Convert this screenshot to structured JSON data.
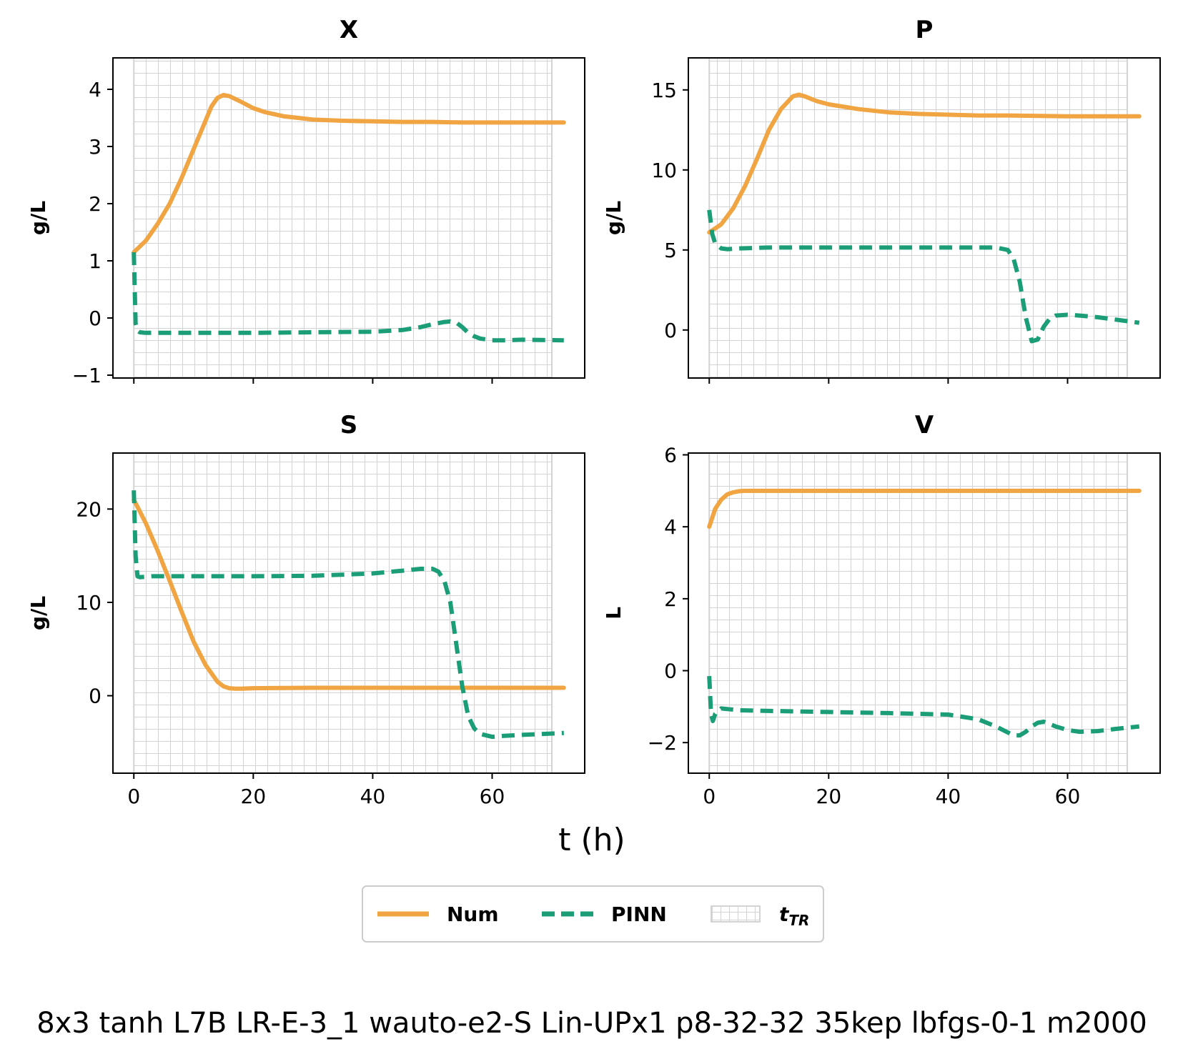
{
  "colors": {
    "num": "#F0A442",
    "pinn": "#1B9E77",
    "grid": "#D3D3D3"
  },
  "xlabel": "t (h)",
  "caption": "8x3 tanh L7B LR-E-3_1 wauto-e2-S Lin-UPx1 p8-32-32 35kep lbfgs-0-1 m2000",
  "legend": {
    "placement": "bottom-center",
    "entries": [
      {
        "label": "Num",
        "style": "solid"
      },
      {
        "label": "PINN",
        "style": "dashed"
      },
      {
        "label": "tTR",
        "style": "hatch"
      }
    ]
  },
  "tTR_range": [
    0,
    70
  ],
  "chart_data": [
    {
      "type": "line",
      "title": "X",
      "ylabel": "g/L",
      "xlim": [
        -3.5,
        75.5
      ],
      "ylim": [
        -1.05,
        4.55
      ],
      "xticks": [
        0,
        20,
        40,
        60
      ],
      "yticks": [
        -1,
        0,
        1,
        2,
        3,
        4
      ],
      "show_xticklabels": false,
      "series": [
        {
          "name": "Num",
          "x": [
            0,
            2,
            4,
            6,
            8,
            10,
            12,
            13,
            14,
            15,
            16,
            18,
            20,
            22,
            25,
            30,
            35,
            40,
            45,
            50,
            55,
            60,
            65,
            72
          ],
          "y": [
            1.15,
            1.35,
            1.65,
            2.0,
            2.45,
            2.95,
            3.45,
            3.7,
            3.85,
            3.9,
            3.88,
            3.78,
            3.67,
            3.6,
            3.53,
            3.47,
            3.45,
            3.44,
            3.43,
            3.43,
            3.42,
            3.42,
            3.42,
            3.42
          ]
        },
        {
          "name": "PINN",
          "x": [
            0,
            0.3,
            0.6,
            1,
            2,
            5,
            10,
            20,
            30,
            40,
            45,
            48,
            50,
            52,
            53,
            54,
            55,
            56,
            57,
            58,
            60,
            62,
            65,
            72
          ],
          "y": [
            1.15,
            -0.1,
            -0.22,
            -0.25,
            -0.26,
            -0.26,
            -0.26,
            -0.26,
            -0.25,
            -0.24,
            -0.21,
            -0.16,
            -0.11,
            -0.07,
            -0.06,
            -0.08,
            -0.16,
            -0.26,
            -0.32,
            -0.36,
            -0.39,
            -0.39,
            -0.38,
            -0.39
          ]
        }
      ]
    },
    {
      "type": "line",
      "title": "P",
      "ylabel": "g/L",
      "xlim": [
        -3.5,
        75.5
      ],
      "ylim": [
        -3.0,
        17.0
      ],
      "xticks": [
        0,
        20,
        40,
        60
      ],
      "yticks": [
        0,
        5,
        10,
        15
      ],
      "show_xticklabels": false,
      "series": [
        {
          "name": "Num",
          "x": [
            0,
            2,
            4,
            6,
            8,
            10,
            12,
            14,
            15,
            16,
            18,
            20,
            25,
            30,
            35,
            40,
            45,
            50,
            60,
            72
          ],
          "y": [
            6.1,
            6.6,
            7.6,
            9.0,
            10.7,
            12.5,
            13.8,
            14.6,
            14.7,
            14.6,
            14.3,
            14.1,
            13.8,
            13.6,
            13.5,
            13.45,
            13.4,
            13.4,
            13.35,
            13.35
          ]
        },
        {
          "name": "PINN",
          "x": [
            0,
            0.5,
            1,
            2,
            3,
            5,
            10,
            20,
            30,
            40,
            45,
            48,
            50,
            51,
            52,
            53,
            54,
            55,
            56,
            57,
            58,
            60,
            62,
            65,
            68,
            72
          ],
          "y": [
            7.5,
            6.0,
            5.4,
            5.1,
            5.05,
            5.1,
            5.15,
            5.15,
            5.15,
            5.15,
            5.15,
            5.15,
            5.0,
            4.4,
            3.0,
            0.8,
            -0.7,
            -0.6,
            0.2,
            0.7,
            0.9,
            0.95,
            0.9,
            0.8,
            0.65,
            0.45
          ]
        }
      ]
    },
    {
      "type": "line",
      "title": "S",
      "ylabel": "g/L",
      "xlim": [
        -3.5,
        75.5
      ],
      "ylim": [
        -8.3,
        26.0
      ],
      "xticks": [
        0,
        20,
        40,
        60
      ],
      "yticks": [
        0,
        10,
        20
      ],
      "show_xticklabels": true,
      "series": [
        {
          "name": "Num",
          "x": [
            0,
            2,
            4,
            6,
            8,
            10,
            12,
            14,
            15,
            16,
            17,
            18,
            20,
            30,
            40,
            50,
            60,
            72
          ],
          "y": [
            21.0,
            18.5,
            15.5,
            12.3,
            9.0,
            5.8,
            3.3,
            1.5,
            1.0,
            0.8,
            0.75,
            0.75,
            0.8,
            0.85,
            0.85,
            0.85,
            0.85,
            0.85
          ]
        },
        {
          "name": "PINN",
          "x": [
            0,
            0.3,
            0.6,
            1,
            3,
            10,
            20,
            30,
            40,
            45,
            48,
            50,
            51,
            52,
            53,
            54,
            55,
            56,
            57,
            58,
            60,
            62,
            65,
            72
          ],
          "y": [
            22.0,
            15.0,
            12.8,
            12.7,
            12.8,
            12.8,
            12.8,
            12.85,
            13.1,
            13.4,
            13.6,
            13.6,
            13.3,
            12.3,
            10.0,
            5.5,
            1.0,
            -2.2,
            -3.5,
            -4.1,
            -4.4,
            -4.3,
            -4.2,
            -4.0
          ]
        }
      ]
    },
    {
      "type": "line",
      "title": "V",
      "ylabel": "L",
      "xlim": [
        -3.5,
        75.5
      ],
      "ylim": [
        -2.85,
        6.05
      ],
      "xticks": [
        0,
        20,
        40,
        60
      ],
      "yticks": [
        -2,
        0,
        2,
        4,
        6
      ],
      "show_xticklabels": true,
      "series": [
        {
          "name": "Num",
          "x": [
            0,
            1,
            2,
            3,
            4,
            5,
            6,
            8,
            10,
            20,
            40,
            60,
            72
          ],
          "y": [
            4.0,
            4.5,
            4.75,
            4.9,
            4.96,
            4.99,
            5.0,
            5.0,
            5.0,
            5.0,
            5.0,
            5.0,
            5.0
          ]
        },
        {
          "name": "PINN",
          "x": [
            0,
            0.3,
            0.6,
            1,
            2,
            5,
            10,
            20,
            30,
            40,
            45,
            48,
            50,
            51,
            52,
            53,
            54,
            55,
            56,
            57,
            58,
            60,
            62,
            65,
            68,
            72
          ],
          "y": [
            -0.15,
            -1.2,
            -1.4,
            -1.2,
            -1.05,
            -1.1,
            -1.12,
            -1.15,
            -1.18,
            -1.22,
            -1.35,
            -1.55,
            -1.72,
            -1.8,
            -1.8,
            -1.7,
            -1.55,
            -1.45,
            -1.42,
            -1.48,
            -1.55,
            -1.65,
            -1.7,
            -1.68,
            -1.62,
            -1.55
          ]
        }
      ]
    }
  ]
}
